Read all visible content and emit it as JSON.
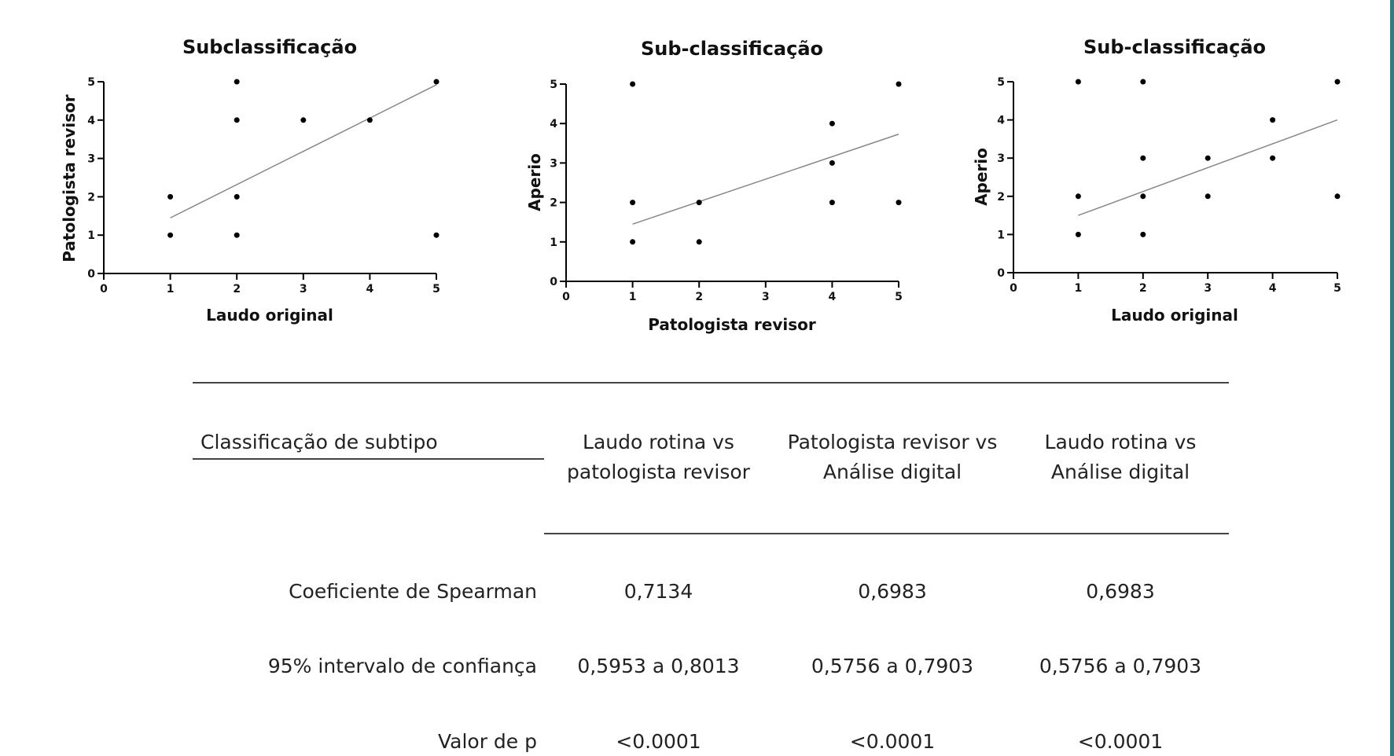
{
  "chart_data": [
    {
      "type": "scatter",
      "title": "Subclassificação",
      "xlabel": "Laudo original",
      "ylabel": "Patologista revisor",
      "xlim": [
        0,
        5
      ],
      "ylim": [
        0,
        5
      ],
      "xticks": [
        "0",
        "1",
        "2",
        "3",
        "4",
        "5"
      ],
      "yticks": [
        "0",
        "1",
        "2",
        "3",
        "4",
        "5"
      ],
      "points": [
        [
          1,
          1
        ],
        [
          1,
          2
        ],
        [
          2,
          1
        ],
        [
          2,
          2
        ],
        [
          2,
          4
        ],
        [
          2,
          5
        ],
        [
          3,
          4
        ],
        [
          4,
          4
        ],
        [
          5,
          1
        ],
        [
          5,
          5
        ]
      ],
      "trendline": [
        [
          1,
          1.45
        ],
        [
          5,
          4.92
        ]
      ],
      "grid": false
    },
    {
      "type": "scatter",
      "title": "Sub-classificação",
      "xlabel": "Patologista revisor",
      "ylabel": "Aperio",
      "xlim": [
        0,
        5
      ],
      "ylim": [
        0,
        5
      ],
      "xticks": [
        "0",
        "1",
        "2",
        "3",
        "4",
        "5"
      ],
      "yticks": [
        "0",
        "1",
        "2",
        "3",
        "4",
        "5"
      ],
      "points": [
        [
          1,
          1
        ],
        [
          1,
          2
        ],
        [
          1,
          5
        ],
        [
          2,
          1
        ],
        [
          2,
          2
        ],
        [
          4,
          2
        ],
        [
          4,
          3
        ],
        [
          4,
          4
        ],
        [
          5,
          2
        ],
        [
          5,
          5
        ]
      ],
      "trendline": [
        [
          1,
          1.45
        ],
        [
          5,
          3.73
        ]
      ],
      "grid": false
    },
    {
      "type": "scatter",
      "title": "Sub-classificação",
      "xlabel": "Laudo original",
      "ylabel": "Aperio",
      "xlim": [
        0,
        5
      ],
      "ylim": [
        0,
        5
      ],
      "xticks": [
        "0",
        "1",
        "2",
        "3",
        "4",
        "5"
      ],
      "yticks": [
        "0",
        "1",
        "2",
        "3",
        "4",
        "5"
      ],
      "points": [
        [
          1,
          1
        ],
        [
          1,
          2
        ],
        [
          1,
          5
        ],
        [
          2,
          1
        ],
        [
          2,
          2
        ],
        [
          2,
          3
        ],
        [
          2,
          5
        ],
        [
          3,
          2
        ],
        [
          3,
          3
        ],
        [
          4,
          3
        ],
        [
          4,
          4
        ],
        [
          5,
          2
        ],
        [
          5,
          5
        ]
      ],
      "trendline": [
        [
          1,
          1.5
        ],
        [
          5,
          4.0
        ]
      ],
      "grid": false
    }
  ],
  "table": {
    "header_label": "Classificação de subtipo",
    "columns": [
      [
        "Laudo rotina vs",
        "patologista revisor"
      ],
      [
        "Patologista revisor vs",
        "Análise digital"
      ],
      [
        "Laudo rotina vs",
        "Análise digital"
      ]
    ],
    "rows": [
      {
        "label": "Coeficiente de Spearman",
        "values": [
          "0,7134",
          "0,6983",
          "0,6983"
        ]
      },
      {
        "label": "95% intervalo de confiança",
        "values": [
          "0,5953 a 0,8013",
          "0,5756 a 0,7903",
          "0,5756 a 0,7903"
        ]
      },
      {
        "label": "Valor de p",
        "values": [
          "<0.0001",
          "<0.0001",
          "<0.0001"
        ]
      }
    ]
  },
  "colors": {
    "right_border": "#2f7f7f",
    "trendline": "#888888",
    "points": "#000000"
  }
}
